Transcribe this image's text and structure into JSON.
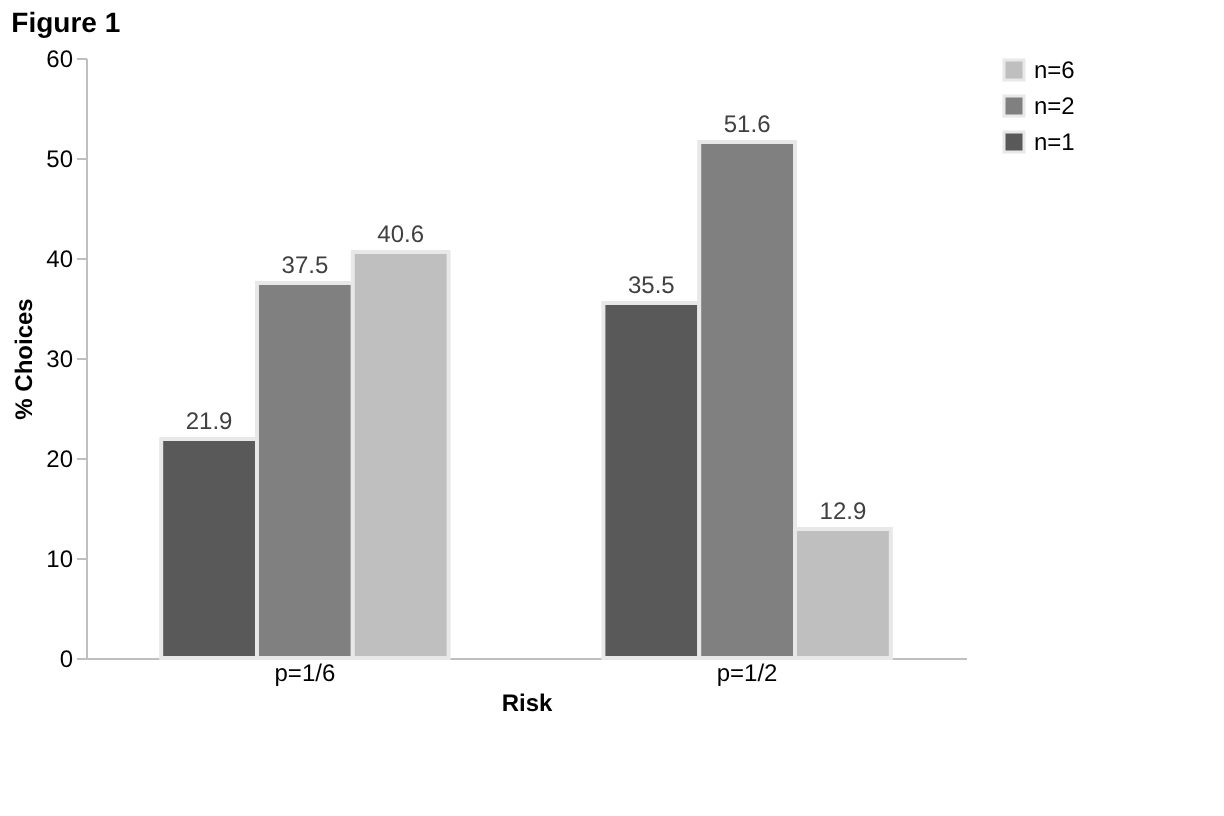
{
  "chart_data": {
    "type": "bar",
    "title": "Figure 1",
    "xlabel": "Risk",
    "ylabel": "% Choices",
    "categories": [
      "p=1/6",
      "p=1/2"
    ],
    "series": [
      {
        "name": "n=1",
        "color": "#595959",
        "values": [
          21.9,
          35.5
        ]
      },
      {
        "name": "n=2",
        "color": "#808080",
        "values": [
          37.5,
          51.6
        ]
      },
      {
        "name": "n=6",
        "color": "#bfbfbf",
        "values": [
          40.6,
          12.9
        ]
      }
    ],
    "ylim": [
      0,
      60
    ],
    "yticks": [
      0,
      10,
      20,
      30,
      40,
      50,
      60
    ],
    "grid": false,
    "legend": "right",
    "data_labels": true
  }
}
